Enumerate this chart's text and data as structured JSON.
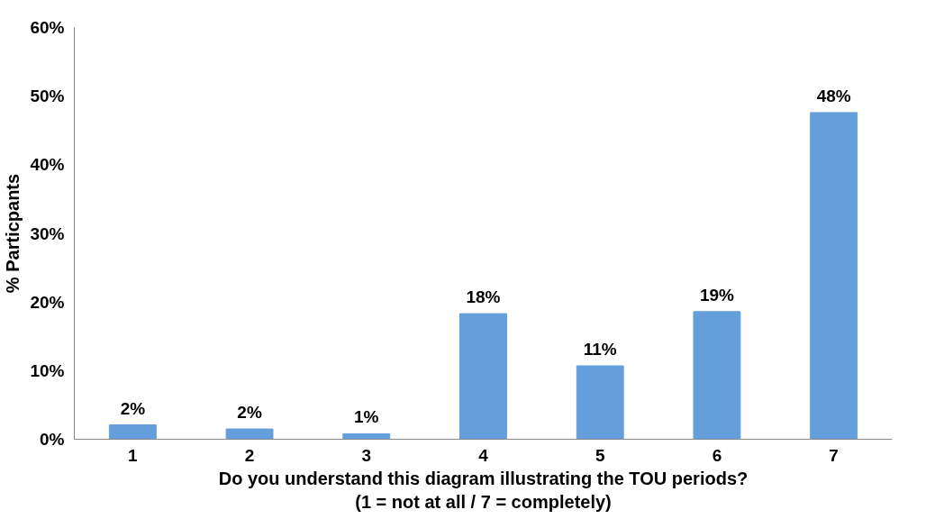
{
  "chart_data": {
    "type": "bar",
    "categories": [
      "1",
      "2",
      "3",
      "4",
      "5",
      "6",
      "7"
    ],
    "values": [
      2.1,
      1.5,
      0.8,
      18.3,
      10.7,
      18.6,
      47.6
    ],
    "value_labels": [
      "2%",
      "2%",
      "1%",
      "18%",
      "11%",
      "19%",
      "48%"
    ],
    "color": "#649fdc",
    "xlabel": "Do you understand this diagram illustrating the TOU periods?\n(1 = not at all / 7 = completely)",
    "ylabel": "% Particpants",
    "ylim": [
      0,
      60
    ],
    "yticks": [
      {
        "value": 0,
        "label": "0%"
      },
      {
        "value": 10,
        "label": "10%"
      },
      {
        "value": 20,
        "label": "20%"
      },
      {
        "value": 30,
        "label": "30%"
      },
      {
        "value": 40,
        "label": "40%"
      },
      {
        "value": 50,
        "label": "50%"
      },
      {
        "value": 60,
        "label": "60%"
      }
    ],
    "grid": false
  }
}
